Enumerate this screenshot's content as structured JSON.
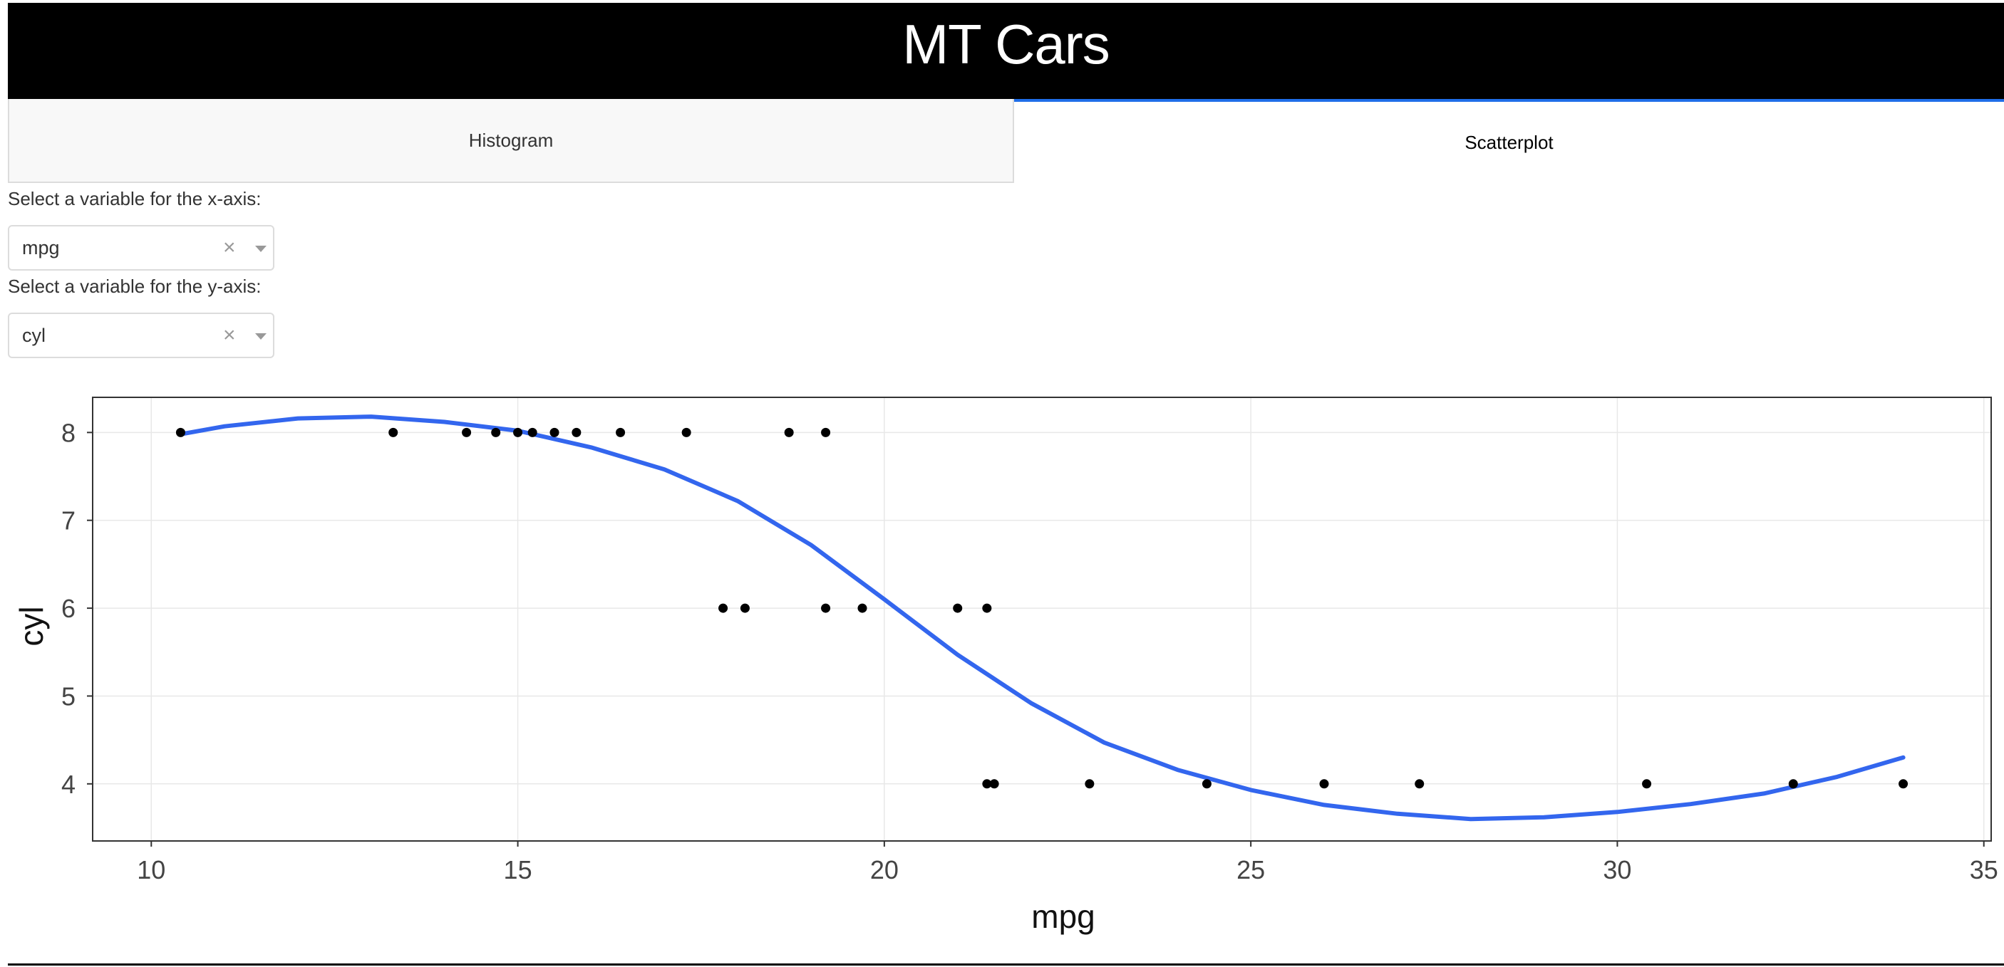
{
  "header": {
    "title": "MT Cars"
  },
  "tabs": [
    {
      "label": "Histogram",
      "active": false
    },
    {
      "label": "Scatterplot",
      "active": true
    }
  ],
  "controls": {
    "x_label": "Select a variable for the x-axis:",
    "x_value": "mpg",
    "y_label": "Select a variable for the y-axis:",
    "y_value": "cyl",
    "clear_glyph": "×"
  },
  "colors": {
    "accent": "#1f6ee8",
    "line": "#3366ee",
    "points": "#000000",
    "header": "#000000"
  },
  "chart_data": {
    "type": "scatter",
    "xlabel": "mpg",
    "ylabel": "cyl",
    "xlim": [
      9.2,
      35.1
    ],
    "ylim": [
      3.35,
      8.4
    ],
    "xticks": [
      10,
      15,
      20,
      25,
      30,
      35
    ],
    "yticks": [
      4,
      5,
      6,
      7,
      8
    ],
    "grid": true,
    "points": [
      [
        10.4,
        8
      ],
      [
        13.3,
        8
      ],
      [
        14.3,
        8
      ],
      [
        14.7,
        8
      ],
      [
        15.0,
        8
      ],
      [
        15.2,
        8
      ],
      [
        15.5,
        8
      ],
      [
        15.8,
        8
      ],
      [
        16.4,
        8
      ],
      [
        17.3,
        8
      ],
      [
        18.7,
        8
      ],
      [
        19.2,
        8
      ],
      [
        17.8,
        6
      ],
      [
        18.1,
        6
      ],
      [
        19.2,
        6
      ],
      [
        19.7,
        6
      ],
      [
        21.0,
        6
      ],
      [
        21.4,
        6
      ],
      [
        21.4,
        4
      ],
      [
        21.5,
        4
      ],
      [
        22.8,
        4
      ],
      [
        24.4,
        4
      ],
      [
        26.0,
        4
      ],
      [
        27.3,
        4
      ],
      [
        30.4,
        4
      ],
      [
        32.4,
        4
      ],
      [
        33.9,
        4
      ]
    ],
    "smooth": [
      [
        10.4,
        7.98
      ],
      [
        11.0,
        8.07
      ],
      [
        12.0,
        8.16
      ],
      [
        13.0,
        8.18
      ],
      [
        14.0,
        8.12
      ],
      [
        15.0,
        8.02
      ],
      [
        16.0,
        7.83
      ],
      [
        17.0,
        7.58
      ],
      [
        18.0,
        7.22
      ],
      [
        19.0,
        6.72
      ],
      [
        20.0,
        6.1
      ],
      [
        21.0,
        5.47
      ],
      [
        22.0,
        4.92
      ],
      [
        23.0,
        4.47
      ],
      [
        24.0,
        4.16
      ],
      [
        25.0,
        3.93
      ],
      [
        26.0,
        3.76
      ],
      [
        27.0,
        3.66
      ],
      [
        28.0,
        3.6
      ],
      [
        29.0,
        3.62
      ],
      [
        30.0,
        3.68
      ],
      [
        31.0,
        3.77
      ],
      [
        32.0,
        3.89
      ],
      [
        33.0,
        4.08
      ],
      [
        33.9,
        4.3
      ]
    ]
  }
}
